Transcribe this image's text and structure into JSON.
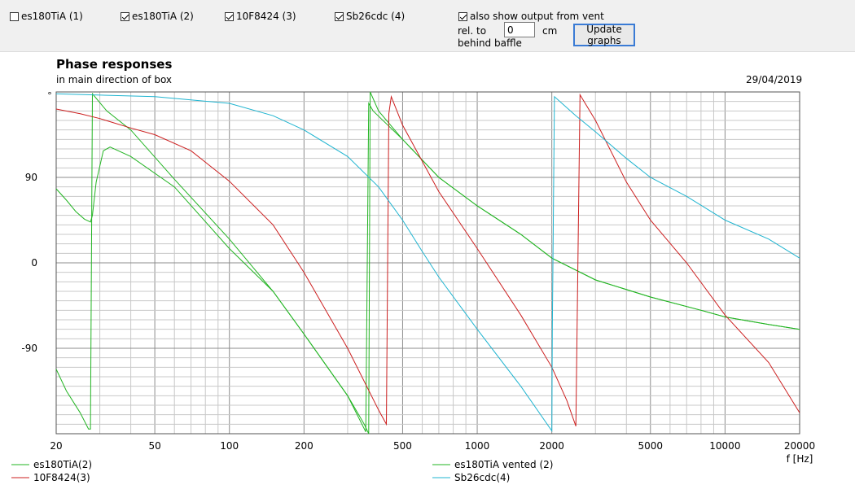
{
  "toolbar": {
    "checkboxes": [
      {
        "label": "es180TiA (1)",
        "checked": false
      },
      {
        "label": "es180TiA (2)",
        "checked": true
      },
      {
        "label": "10F8424 (3)",
        "checked": true
      },
      {
        "label": "Sb26cdc (4)",
        "checked": true
      },
      {
        "label": "also show output from vent",
        "checked": true
      }
    ],
    "rel_to_label": "rel. to",
    "behind_baffle_label": "behind baffle",
    "offset_value": "0",
    "unit_label": "cm",
    "update_button": "Update graphs"
  },
  "chart_data": {
    "type": "line",
    "title": "Phase responses",
    "subtitle": "in main direction of box",
    "date": "29/04/2019",
    "xlabel": "f [Hz]",
    "ylabel": "°",
    "x_scale": "log",
    "xlim": [
      20,
      20000
    ],
    "ylim": [
      -180,
      180
    ],
    "x_tick_labels": [
      "20",
      "50",
      "100",
      "200",
      "500",
      "1000",
      "2000",
      "5000",
      "10000",
      "20000"
    ],
    "y_tick_labels": [
      "90",
      "0",
      "-90"
    ],
    "grid": true,
    "legend_position": "bottom",
    "series": [
      {
        "name": "es180TiA(2)",
        "color": "#22b422",
        "points": [
          [
            20,
            -112
          ],
          [
            22,
            -135
          ],
          [
            25,
            -158
          ],
          [
            27,
            -175
          ],
          [
            27.5,
            -175
          ],
          [
            28,
            178
          ],
          [
            32,
            160
          ],
          [
            40,
            140
          ],
          [
            60,
            88
          ],
          [
            100,
            25
          ],
          [
            150,
            -30
          ],
          [
            200,
            -75
          ],
          [
            300,
            -140
          ],
          [
            350,
            -170
          ],
          [
            365,
            -180
          ],
          [
            370,
            180
          ],
          [
            400,
            160
          ],
          [
            500,
            130
          ],
          [
            700,
            90
          ],
          [
            1000,
            60
          ],
          [
            1500,
            30
          ],
          [
            2000,
            5
          ],
          [
            3000,
            -18
          ],
          [
            5000,
            -36
          ],
          [
            8000,
            -50
          ],
          [
            10000,
            -57
          ],
          [
            15000,
            -65
          ],
          [
            20000,
            -70
          ]
        ]
      },
      {
        "name": "es180TiA vented (2)",
        "color": "#22b422",
        "points": [
          [
            20,
            78
          ],
          [
            22,
            66
          ],
          [
            24,
            54
          ],
          [
            26,
            46
          ],
          [
            27.5,
            43
          ],
          [
            28,
            50
          ],
          [
            29,
            85
          ],
          [
            31,
            118
          ],
          [
            33,
            122
          ],
          [
            40,
            112
          ],
          [
            60,
            80
          ],
          [
            100,
            15
          ],
          [
            150,
            -30
          ],
          [
            200,
            -75
          ],
          [
            300,
            -140
          ],
          [
            355,
            -178
          ],
          [
            365,
            168
          ],
          [
            380,
            160
          ],
          [
            500,
            130
          ],
          [
            700,
            90
          ],
          [
            1000,
            60
          ],
          [
            1500,
            30
          ],
          [
            2000,
            5
          ],
          [
            3000,
            -18
          ],
          [
            5000,
            -36
          ],
          [
            8000,
            -50
          ],
          [
            10000,
            -57
          ],
          [
            15000,
            -65
          ],
          [
            20000,
            -70
          ]
        ]
      },
      {
        "name": "10F8424(3)",
        "color": "#cc1f1f",
        "points": [
          [
            20,
            162
          ],
          [
            25,
            157
          ],
          [
            30,
            152
          ],
          [
            40,
            142
          ],
          [
            50,
            135
          ],
          [
            70,
            118
          ],
          [
            100,
            86
          ],
          [
            150,
            40
          ],
          [
            200,
            -10
          ],
          [
            300,
            -90
          ],
          [
            400,
            -155
          ],
          [
            430,
            -170
          ],
          [
            440,
            157
          ],
          [
            450,
            175
          ],
          [
            500,
            145
          ],
          [
            700,
            75
          ],
          [
            1000,
            15
          ],
          [
            1500,
            -55
          ],
          [
            2000,
            -110
          ],
          [
            2300,
            -145
          ],
          [
            2500,
            -172
          ],
          [
            2600,
            177
          ],
          [
            3000,
            150
          ],
          [
            4000,
            85
          ],
          [
            5000,
            45
          ],
          [
            7000,
            0
          ],
          [
            10000,
            -55
          ],
          [
            15000,
            -105
          ],
          [
            20000,
            -158
          ]
        ]
      },
      {
        "name": "Sb26cdc(4)",
        "color": "#1fb4d0",
        "points": [
          [
            20,
            178
          ],
          [
            50,
            175
          ],
          [
            100,
            168
          ],
          [
            150,
            155
          ],
          [
            200,
            140
          ],
          [
            300,
            112
          ],
          [
            400,
            80
          ],
          [
            500,
            45
          ],
          [
            600,
            12
          ],
          [
            700,
            -15
          ],
          [
            1000,
            -70
          ],
          [
            1500,
            -130
          ],
          [
            2000,
            -177
          ],
          [
            2010,
            -70
          ],
          [
            2050,
            175
          ],
          [
            2500,
            155
          ],
          [
            3000,
            138
          ],
          [
            4000,
            110
          ],
          [
            5000,
            90
          ],
          [
            7000,
            70
          ],
          [
            10000,
            45
          ],
          [
            15000,
            25
          ],
          [
            20000,
            5
          ]
        ]
      }
    ]
  }
}
